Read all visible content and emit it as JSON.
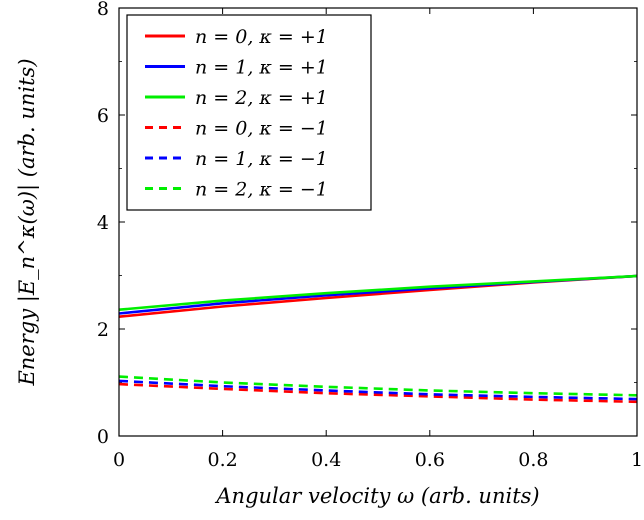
{
  "chart_data": {
    "type": "line",
    "title": "",
    "xlabel": "Angular velocity ω (arb. units)",
    "ylabel": "Energy |E_n^κ(ω)| (arb. units)",
    "xlim": [
      0,
      1
    ],
    "ylim": [
      0,
      8
    ],
    "xticks": [
      0,
      0.2,
      0.4,
      0.6,
      0.8,
      1
    ],
    "xtick_labels": [
      "0",
      "0.2",
      "0.4",
      "0.6",
      "0.8",
      "1"
    ],
    "yticks": [
      0,
      2,
      4,
      6,
      8
    ],
    "ytick_labels": [
      "0",
      "2",
      "4",
      "6",
      "8"
    ],
    "grid": false,
    "legend_position": "top-left",
    "x": [
      0,
      0.2,
      0.4,
      0.6,
      0.8,
      1.0
    ],
    "series": [
      {
        "name": "n = 0, κ = +1",
        "color": "#ff0000",
        "dash": "solid",
        "values": [
          2.23,
          2.42,
          2.58,
          2.73,
          2.87,
          2.99
        ]
      },
      {
        "name": "n = 1, κ = +1",
        "color": "#0000ff",
        "dash": "solid",
        "values": [
          2.29,
          2.48,
          2.63,
          2.76,
          2.88,
          2.99
        ]
      },
      {
        "name": "n = 2, κ = +1",
        "color": "#00ee00",
        "dash": "solid",
        "values": [
          2.36,
          2.53,
          2.67,
          2.79,
          2.89,
          2.99
        ]
      },
      {
        "name": "n = 0, κ = −1",
        "color": "#ff0000",
        "dash": "dashed",
        "values": [
          0.97,
          0.88,
          0.8,
          0.74,
          0.68,
          0.64
        ]
      },
      {
        "name": "n = 1, κ = −1",
        "color": "#0000ff",
        "dash": "dashed",
        "values": [
          1.03,
          0.93,
          0.85,
          0.78,
          0.73,
          0.69
        ]
      },
      {
        "name": "n = 2, κ = −1",
        "color": "#00ee00",
        "dash": "dashed",
        "values": [
          1.11,
          1.0,
          0.92,
          0.85,
          0.8,
          0.76
        ]
      }
    ]
  }
}
